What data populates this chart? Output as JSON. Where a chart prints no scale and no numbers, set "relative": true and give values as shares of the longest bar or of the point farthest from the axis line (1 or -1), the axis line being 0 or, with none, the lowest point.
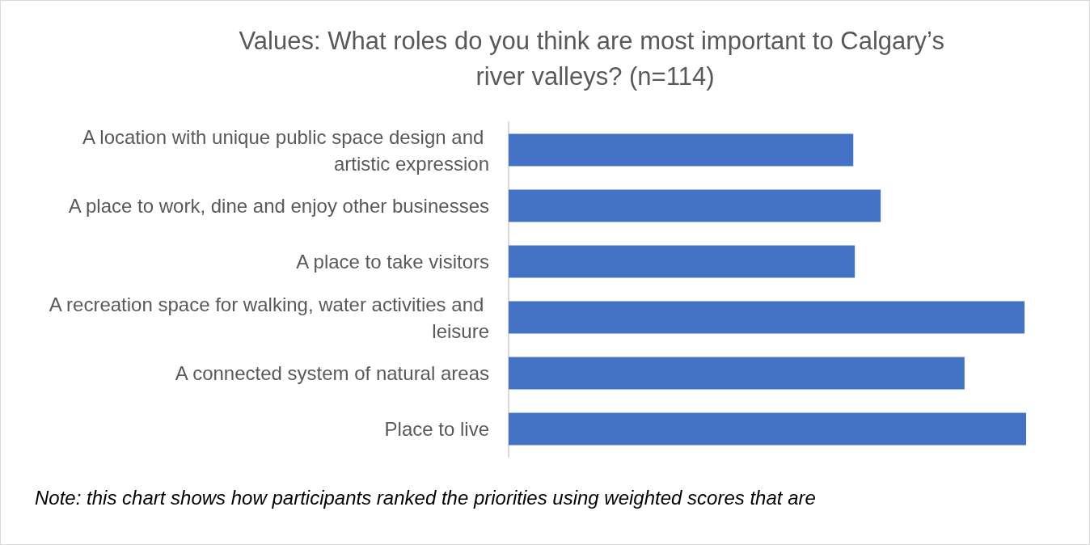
{
  "chart_data": {
    "type": "bar",
    "orientation": "horizontal",
    "relative": true,
    "title": "Values: What roles do you think are most important to Calgary’s river valleys? (n=114)",
    "categories": [
      "A location with unique public space design and artistic expression",
      "A place to work, dine and enjoy other businesses",
      "A place to take visitors",
      "A recreation space for walking, water activities and leisure",
      "A connected system of natural areas",
      "Place to live"
    ],
    "values": [
      0.666,
      0.719,
      0.669,
      0.997,
      0.881,
      1
    ],
    "color": "#4472c4",
    "annotations": [
      "Note: this chart shows how participants ranked the priorities using weighted scores that are"
    ]
  }
}
